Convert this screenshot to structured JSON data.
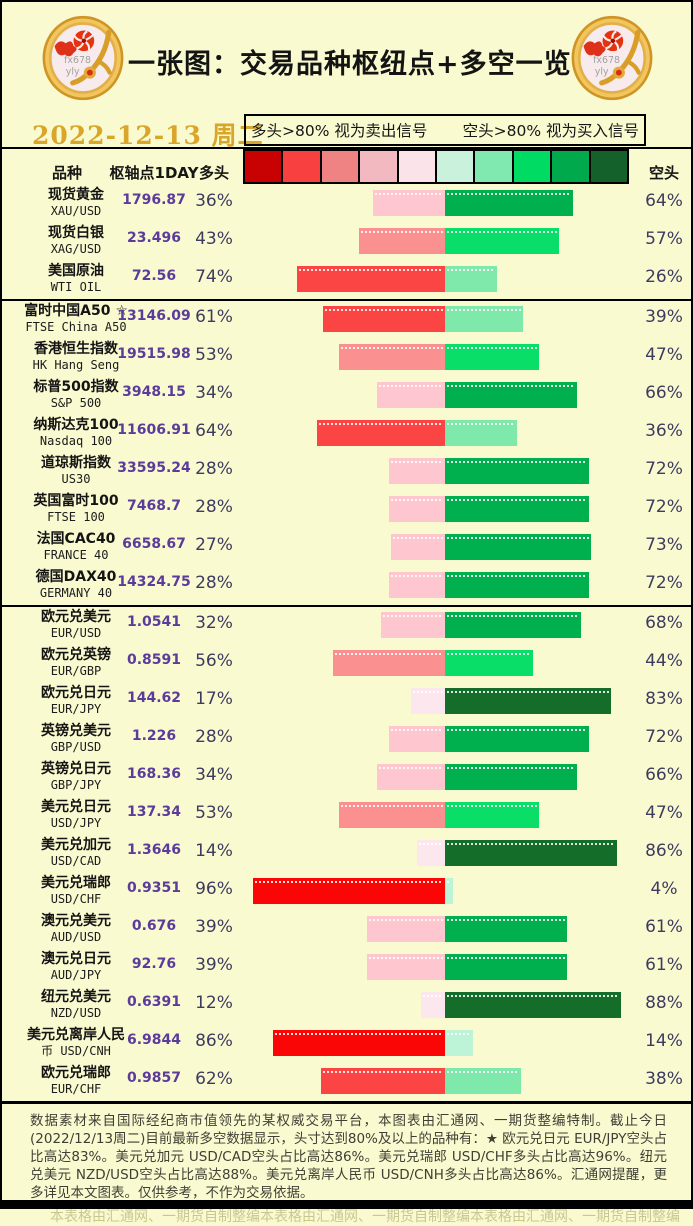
{
  "header": {
    "title": "一张图：交易品种枢纽点+多空一览",
    "date": "2022-12-13 周二",
    "logo_watermark_1": "fx678",
    "logo_watermark_2": "yly"
  },
  "legend": {
    "long_note": "多头>80% 视为卖出信号",
    "short_note": "空头>80% 视为买入信号"
  },
  "columns": {
    "instrument": "品种",
    "pivot": "枢轴点1DAY",
    "long": "多头",
    "short": "空头"
  },
  "colors": {
    "background": "#FAFAD0",
    "date_text": "#D9A62A",
    "pivot_text": "#5B3C9B",
    "pct_text": "#3D3B5E",
    "footer_text": "#3F3F35",
    "watermark_text": "#C9C791",
    "scale": [
      "#C80202",
      "#F84040",
      "#EF8383",
      "#F3B9C1",
      "#FBE3EA",
      "#C9F1DB",
      "#7FE9B0",
      "#00DB64",
      "#00A94C",
      "#14612C"
    ],
    "long_bins": [
      "#FBE7ED",
      "#FEC6CE",
      "#FA9090",
      "#FB4444",
      "#FA0606"
    ],
    "short_bins": [
      "#BDF3D7",
      "#7FE9AC",
      "#09DE68",
      "#00B04E",
      "#146E29"
    ]
  },
  "chart_data": {
    "type": "bar",
    "orientation": "horizontal-diverging",
    "title": "一张图：交易品种枢纽点+多空一览",
    "series_names": [
      "多头",
      "空头"
    ],
    "unit": "%",
    "xlim_each_side": [
      0,
      100
    ],
    "sections": [
      {
        "rows": [
          {
            "line1": "现货黄金",
            "line2": "XAU/USD",
            "pivot": "1796.87",
            "long": 36,
            "short": 64
          },
          {
            "line1": "现货白银",
            "line2": "XAG/USD",
            "pivot": "23.496",
            "long": 43,
            "short": 57
          },
          {
            "line1": "美国原油",
            "line2": "WTI OIL",
            "pivot": "72.56",
            "long": 74,
            "short": 26
          }
        ]
      },
      {
        "rows": [
          {
            "line1": "富时中国A50 ☆",
            "line2": "FTSE China A50",
            "pivot": "13146.09",
            "long": 61,
            "short": 39
          },
          {
            "line1": "香港恒生指数",
            "line2": "HK Hang Seng",
            "pivot": "19515.98",
            "long": 53,
            "short": 47
          },
          {
            "line1": "标普500指数",
            "line2": "S&P 500",
            "pivot": "3948.15",
            "long": 34,
            "short": 66
          },
          {
            "line1": "纳斯达克100",
            "line2": "Nasdaq 100",
            "pivot": "11606.91",
            "long": 64,
            "short": 36
          },
          {
            "line1": "道琼斯指数",
            "line2": "US30",
            "pivot": "33595.24",
            "long": 28,
            "short": 72
          },
          {
            "line1": "英国富时100",
            "line2": "FTSE 100",
            "pivot": "7468.7",
            "long": 28,
            "short": 72
          },
          {
            "line1": "法国CAC40",
            "line2": "FRANCE 40",
            "pivot": "6658.67",
            "long": 27,
            "short": 73
          },
          {
            "line1": "德国DAX40",
            "line2": "GERMANY 40",
            "pivot": "14324.75",
            "long": 28,
            "short": 72
          }
        ]
      },
      {
        "rows": [
          {
            "line1": "欧元兑美元",
            "line2": "EUR/USD",
            "pivot": "1.0541",
            "long": 32,
            "short": 68
          },
          {
            "line1": "欧元兑英镑",
            "line2": "EUR/GBP",
            "pivot": "0.8591",
            "long": 56,
            "short": 44
          },
          {
            "line1": "欧元兑日元",
            "line2": "EUR/JPY",
            "pivot": "144.62",
            "long": 17,
            "short": 83
          },
          {
            "line1": "英镑兑美元",
            "line2": "GBP/USD",
            "pivot": "1.226",
            "long": 28,
            "short": 72
          },
          {
            "line1": "英镑兑日元",
            "line2": "GBP/JPY",
            "pivot": "168.36",
            "long": 34,
            "short": 66
          },
          {
            "line1": "美元兑日元",
            "line2": "USD/JPY",
            "pivot": "137.34",
            "long": 53,
            "short": 47
          },
          {
            "line1": "美元兑加元",
            "line2": "USD/CAD",
            "pivot": "1.3646",
            "long": 14,
            "short": 86
          },
          {
            "line1": "美元兑瑞郎",
            "line2": "USD/CHF",
            "pivot": "0.9351",
            "long": 96,
            "short": 4
          },
          {
            "line1": "澳元兑美元",
            "line2": "AUD/USD",
            "pivot": "0.676",
            "long": 39,
            "short": 61
          },
          {
            "line1": "澳元兑日元",
            "line2": "AUD/JPY",
            "pivot": "92.76",
            "long": 39,
            "short": 61
          },
          {
            "line1": "纽元兑美元",
            "line2": "NZD/USD",
            "pivot": "0.6391",
            "long": 12,
            "short": 88
          },
          {
            "line1": "美元兑离岸人民",
            "line2": "币 USD/CNH",
            "pivot": "6.9844",
            "long": 86,
            "short": 14
          },
          {
            "line1": "欧元兑瑞郎",
            "line2": "EUR/CHF",
            "pivot": "0.9857",
            "long": 62,
            "short": 38
          }
        ]
      }
    ]
  },
  "footer": {
    "text": "数据素材来自国际经纪商市值领先的某权威交易平台，本图表由汇通网、一期货整编特制。截止今日(2022/12/13周二)目前最新多空数据显示，头寸达到80%及以上的品种有：★ 欧元兑日元 EUR/JPY空头占比高达83%。美元兑加元 USD/CAD空头占比高达86%。美元兑瑞郎 USD/CHF多头占比高达96%。纽元兑美元 NZD/USD空头占比高达88%。美元兑离岸人民币 USD/CNH多头占比高达86%。汇通网提醒，更多详见本文图表。仅供参考，不作为交易依据。",
    "watermark": "本表格由汇通网、一期货自制整编",
    "watermark_count": 3
  }
}
